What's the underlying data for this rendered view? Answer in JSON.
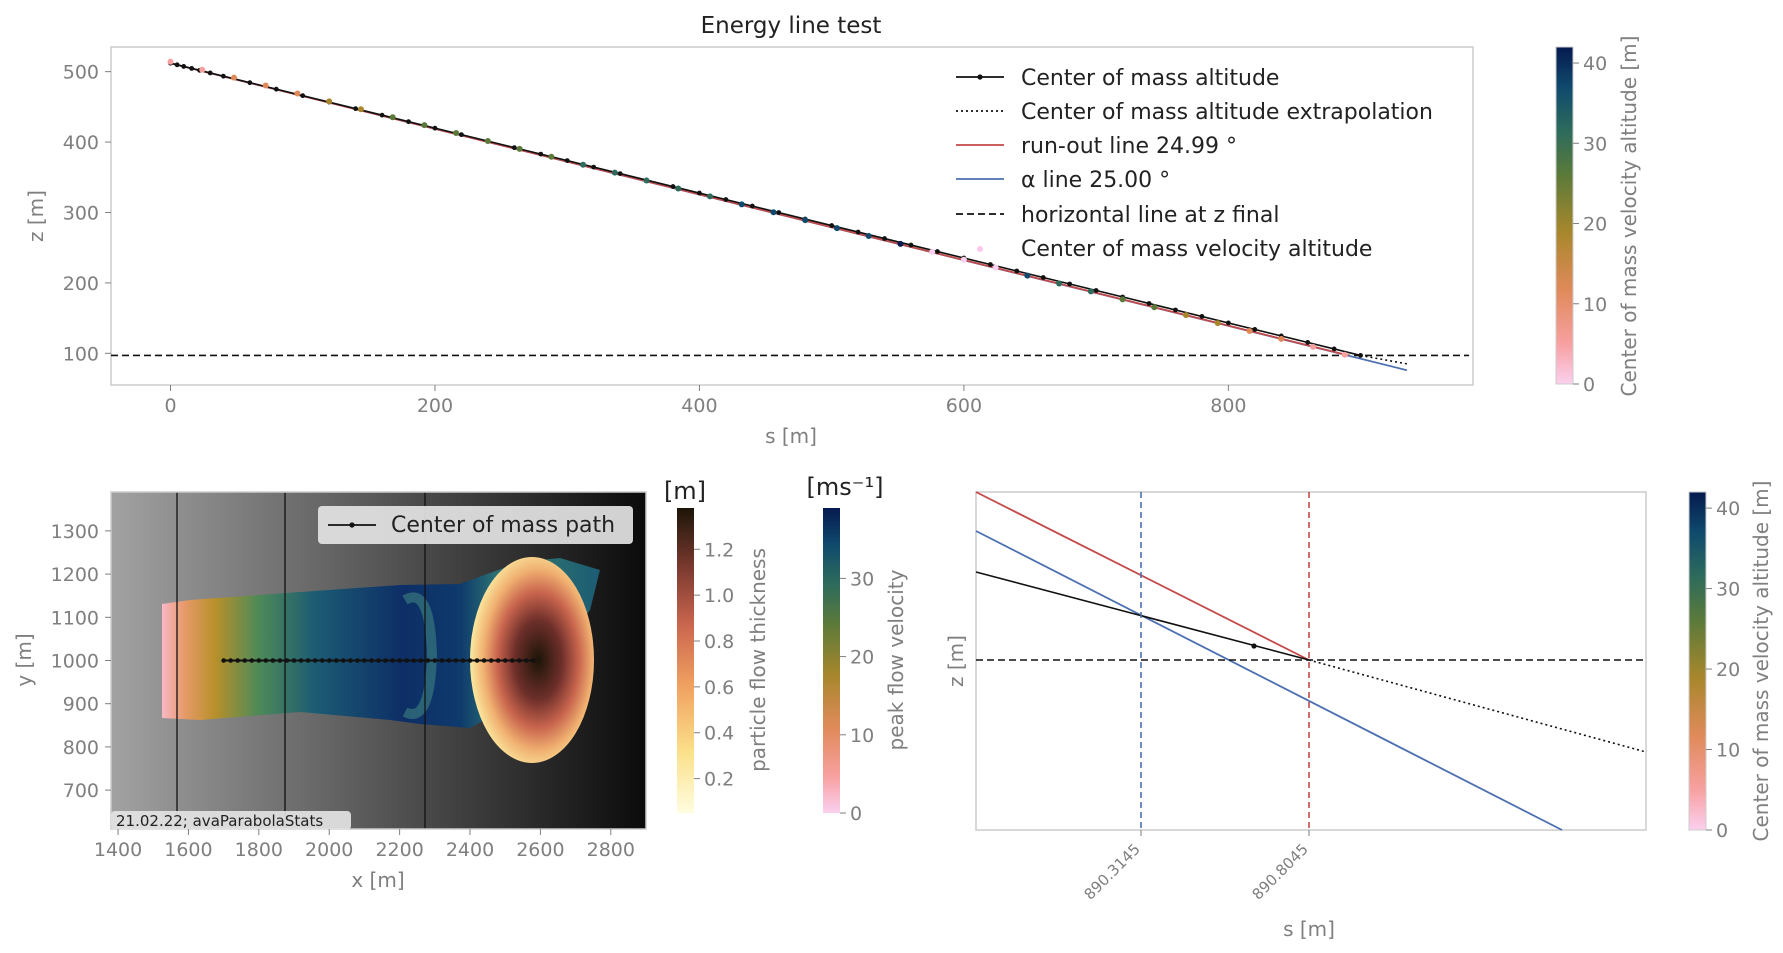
{
  "chart_data": [
    {
      "type": "line",
      "title": "Energy line test",
      "xlabel": "s [m]",
      "ylabel": "z [m]",
      "xlim": [
        -45,
        985
      ],
      "ylim": [
        55,
        535
      ],
      "xticks": [
        "0",
        "200",
        "400",
        "600",
        "800"
      ],
      "yticks": [
        "100",
        "200",
        "300",
        "400",
        "500"
      ],
      "legend": {
        "placement": "top-right",
        "entries": [
          "Center of mass altitude",
          "Center of mass altitude extrapolation",
          "run-out line 24.99 °",
          "α line 25.00 °",
          "horizontal line at z final",
          "Center of mass velocity altitude"
        ]
      },
      "series": [
        {
          "name": "Center of mass altitude",
          "style": "black line with dots",
          "x": [
            0,
            900
          ],
          "y": [
            512,
            97
          ]
        },
        {
          "name": "Center of mass altitude extrapolation",
          "style": "dotted",
          "x": [
            900,
            935
          ],
          "y": [
            97,
            85
          ]
        },
        {
          "name": "run-out line 24.99 °",
          "style": "red line",
          "x": [
            0,
            890.8
          ],
          "y": [
            512,
            97
          ]
        },
        {
          "name": "α line 25.00 °",
          "style": "blue line",
          "x": [
            0,
            935
          ],
          "y": [
            512,
            76
          ]
        },
        {
          "name": "horizontal line at z final",
          "style": "dashed",
          "y": 97
        },
        {
          "name": "Center of mass velocity altitude",
          "style": "colored points",
          "x_start": 0,
          "x_end": 890,
          "y_start": 514,
          "y_end": 97
        }
      ],
      "colorbar": {
        "label": "Center of mass velocity altitude [m]",
        "ticks": [
          "0",
          "10",
          "20",
          "30",
          "40"
        ],
        "range": [
          0,
          42
        ]
      }
    },
    {
      "type": "heatmap",
      "xlabel": "x [m]",
      "ylabel": "y [m]",
      "xlim": [
        1380,
        2900
      ],
      "ylim": [
        610,
        1390
      ],
      "xticks": [
        "1400",
        "1600",
        "1800",
        "2000",
        "2200",
        "2400",
        "2600",
        "2800"
      ],
      "yticks": [
        "700",
        "800",
        "900",
        "1000",
        "1100",
        "1200",
        "1300"
      ],
      "legend": {
        "placement": "top-right",
        "entries": [
          "Center of mass path"
        ]
      },
      "path": {
        "name": "Center of mass path",
        "x_start": 1700,
        "x_end": 2580,
        "y": 1000
      },
      "annotation": "21.02.22; avaParabolaStats",
      "colorbars": [
        {
          "unit": "[m]",
          "label": "particle flow thickness",
          "ticks": [
            "0.2",
            "0.4",
            "0.6",
            "0.8",
            "1.0",
            "1.2"
          ],
          "range": [
            0.05,
            1.38
          ]
        },
        {
          "unit": "[ms⁻¹]",
          "label": "peak flow velocity",
          "ticks": [
            "0",
            "10",
            "20",
            "30"
          ],
          "range": [
            0,
            39
          ]
        }
      ]
    },
    {
      "type": "line",
      "xlabel": "s [m]",
      "ylabel": "z [m]",
      "xticks": [
        "890.3145",
        "890.8045"
      ],
      "colorbar": {
        "label": "Center of mass velocity altitude [m]",
        "ticks": [
          "0",
          "10",
          "20",
          "30",
          "40"
        ],
        "range": [
          0,
          42
        ]
      }
    }
  ],
  "colors": {
    "com_line": "#111111",
    "runout": "#c44a4a",
    "alpha": "#4c6fb0",
    "dashed": "#111111",
    "frame": "#cccccc",
    "tick": "#7f7f7f"
  }
}
